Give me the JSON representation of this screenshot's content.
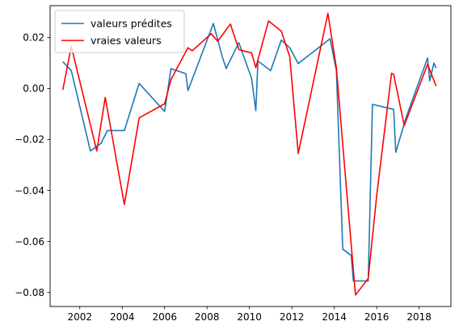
{
  "chart_data": {
    "type": "line",
    "title": "",
    "xlabel": "",
    "ylabel": "",
    "xlim": [
      2000.6,
      2019.5
    ],
    "ylim": [
      -0.0855,
      0.0325
    ],
    "xticks": [
      2002,
      2004,
      2006,
      2008,
      2010,
      2012,
      2014,
      2016,
      2018
    ],
    "yticks": [
      0.02,
      0.0,
      -0.02,
      -0.04,
      -0.06,
      -0.08
    ],
    "ytick_labels": [
      "0.02",
      "0.00",
      "−0.02",
      "−0.04",
      "−0.06",
      "−0.08"
    ],
    "grid": false,
    "legend": {
      "position": "top-left"
    },
    "series": [
      {
        "name": "valeurs prédites",
        "color": "#1f77b4",
        "points": [
          [
            2001.2,
            0.0105
          ],
          [
            2001.6,
            0.007
          ],
          [
            2002.5,
            -0.0245
          ],
          [
            2003.0,
            -0.0215
          ],
          [
            2003.3,
            -0.0165
          ],
          [
            2003.9,
            -0.0165
          ],
          [
            2004.1,
            -0.0165
          ],
          [
            2004.8,
            0.002
          ],
          [
            2006.0,
            -0.009
          ],
          [
            2006.3,
            0.0078
          ],
          [
            2007.0,
            0.0058
          ],
          [
            2007.1,
            -0.0008
          ],
          [
            2008.3,
            0.0255
          ],
          [
            2008.7,
            0.013
          ],
          [
            2008.9,
            0.0078
          ],
          [
            2009.5,
            0.018
          ],
          [
            2010.1,
            0.004
          ],
          [
            2010.3,
            -0.0087
          ],
          [
            2010.4,
            0.0108
          ],
          [
            2011.0,
            0.007
          ],
          [
            2011.5,
            0.019
          ],
          [
            2011.9,
            0.016
          ],
          [
            2012.3,
            0.0098
          ],
          [
            2013.8,
            0.0195
          ],
          [
            2014.1,
            0.007
          ],
          [
            2014.4,
            -0.063
          ],
          [
            2014.8,
            -0.0655
          ],
          [
            2014.9,
            -0.0755
          ],
          [
            2015.6,
            -0.0755
          ],
          [
            2015.8,
            -0.0062
          ],
          [
            2016.8,
            -0.0082
          ],
          [
            2016.9,
            -0.025
          ],
          [
            2017.4,
            -0.011
          ],
          [
            2018.4,
            0.012
          ],
          [
            2018.5,
            0.003
          ],
          [
            2018.7,
            0.01
          ],
          [
            2018.8,
            0.008
          ]
        ]
      },
      {
        "name": "vraies valeurs",
        "color": "#ff0000",
        "points": [
          [
            2001.2,
            -0.0005
          ],
          [
            2001.6,
            0.0165
          ],
          [
            2002.8,
            -0.0245
          ],
          [
            2003.2,
            -0.0035
          ],
          [
            2004.1,
            -0.0455
          ],
          [
            2004.8,
            -0.0115
          ],
          [
            2006.0,
            -0.006
          ],
          [
            2006.3,
            0.0035
          ],
          [
            2007.1,
            0.016
          ],
          [
            2007.3,
            0.0148
          ],
          [
            2008.2,
            0.0215
          ],
          [
            2008.5,
            0.0185
          ],
          [
            2009.1,
            0.0253
          ],
          [
            2009.5,
            0.0153
          ],
          [
            2009.7,
            0.0148
          ],
          [
            2010.1,
            0.014
          ],
          [
            2010.3,
            0.0082
          ],
          [
            2010.9,
            0.0265
          ],
          [
            2011.5,
            0.0225
          ],
          [
            2011.9,
            0.0125
          ],
          [
            2012.3,
            -0.0255
          ],
          [
            2013.7,
            0.0295
          ],
          [
            2014.1,
            0.008
          ],
          [
            2014.5,
            -0.032
          ],
          [
            2015.0,
            -0.081
          ],
          [
            2015.6,
            -0.0745
          ],
          [
            2016.0,
            -0.042
          ],
          [
            2016.7,
            0.006
          ],
          [
            2016.8,
            0.0055
          ],
          [
            2017.3,
            -0.0145
          ],
          [
            2018.4,
            0.0095
          ],
          [
            2018.8,
            0.001
          ]
        ]
      }
    ]
  }
}
